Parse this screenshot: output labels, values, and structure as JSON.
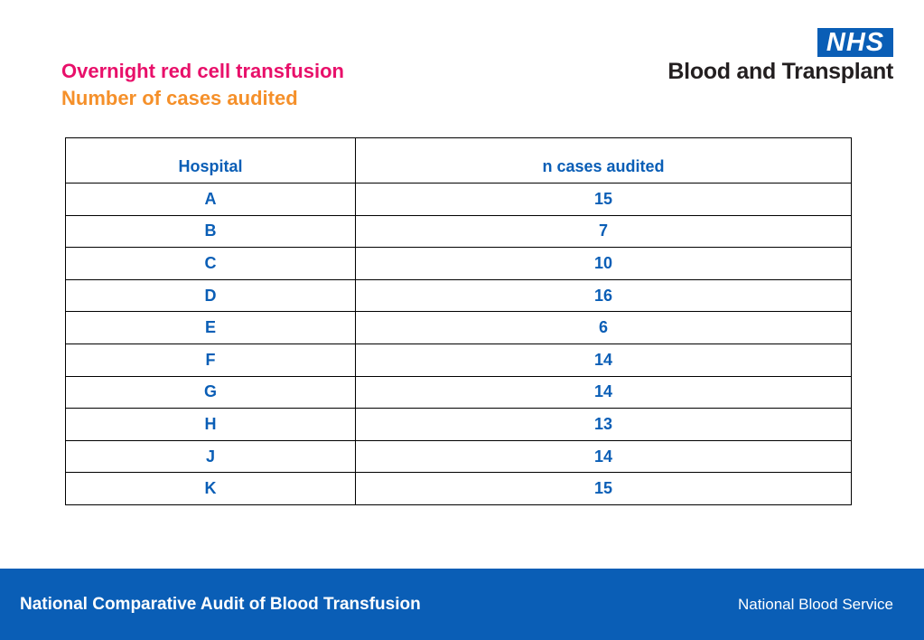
{
  "title": {
    "line1": "Overnight red cell transfusion",
    "line2": "Number of cases audited"
  },
  "logo": {
    "nhs": "NHS",
    "org": "Blood and Transplant"
  },
  "table": {
    "headers": [
      "Hospital",
      "n cases audited"
    ],
    "rows": [
      [
        "A",
        "15"
      ],
      [
        "B",
        "7"
      ],
      [
        "C",
        "10"
      ],
      [
        "D",
        "16"
      ],
      [
        "E",
        "6"
      ],
      [
        "F",
        "14"
      ],
      [
        "G",
        "14"
      ],
      [
        "H",
        "13"
      ],
      [
        "J",
        "14"
      ],
      [
        "K",
        "15"
      ]
    ]
  },
  "footer": {
    "left": "National Comparative Audit of Blood Transfusion",
    "right": "National Blood Service"
  },
  "colors": {
    "title_primary": "#e8106a",
    "title_secondary": "#f5902a",
    "nhs_blue": "#0a5eb6"
  }
}
